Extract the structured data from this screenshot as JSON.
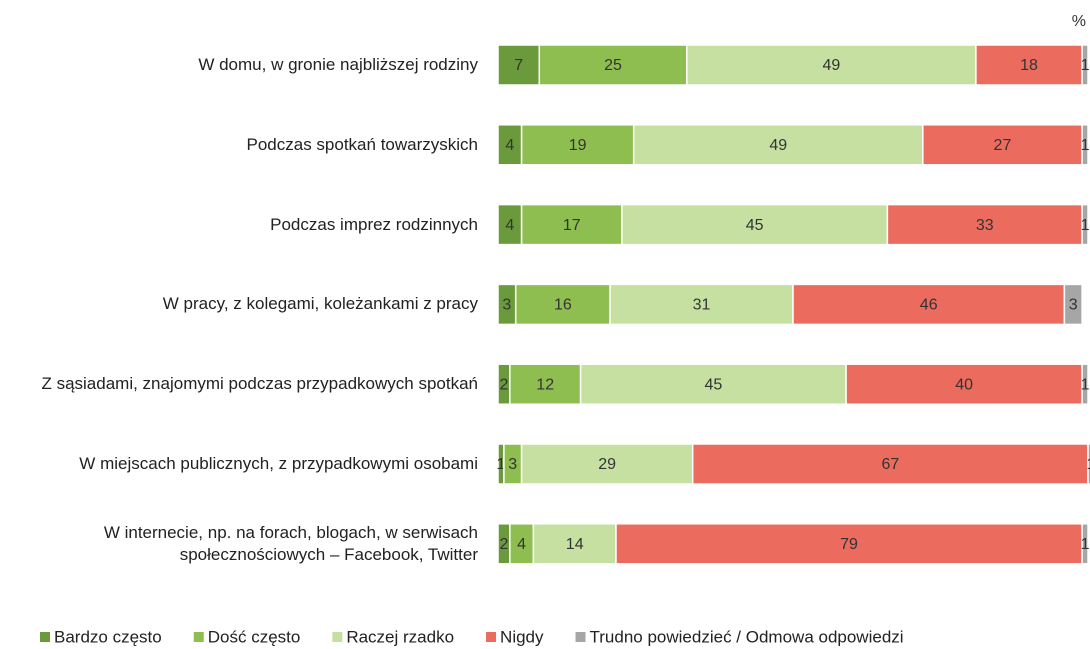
{
  "chart_data": {
    "type": "stacked-bar-horizontal",
    "unit": "%",
    "categories": [
      "W domu, w gronie najbliższej rodziny",
      "Podczas spotkań towarzyskich",
      "Podczas imprez rodzinnych",
      "W pracy, z kolegami, koleżankami z pracy",
      "Z sąsiadami, znajomymi podczas przypadkowych spotkań",
      "W miejscach publicznych, z przypadkowymi osobami",
      "W internecie, np. na forach, blogach, w serwisach społecznościowych – Facebook, Twitter"
    ],
    "xlim": [
      0,
      100
    ],
    "series": [
      {
        "name": "Bardzo często",
        "color": "#6b9a3c",
        "values": [
          7,
          4,
          4,
          3,
          2,
          1,
          2
        ]
      },
      {
        "name": "Dość często",
        "color": "#8fbe50",
        "values": [
          25,
          19,
          17,
          16,
          12,
          3,
          4
        ]
      },
      {
        "name": "Raczej rzadko",
        "color": "#c6e0a2",
        "values": [
          49,
          49,
          45,
          31,
          45,
          29,
          14
        ]
      },
      {
        "name": "Nigdy",
        "color": "#ec6b5f",
        "values": [
          18,
          27,
          33,
          46,
          40,
          67,
          79
        ]
      },
      {
        "name": "Trudno powiedzieć / Odmowa odpowiedzi",
        "color": "#a6a6a6",
        "values": [
          1,
          1,
          1,
          3,
          1,
          1,
          1
        ]
      }
    ],
    "legend": "bottom"
  }
}
